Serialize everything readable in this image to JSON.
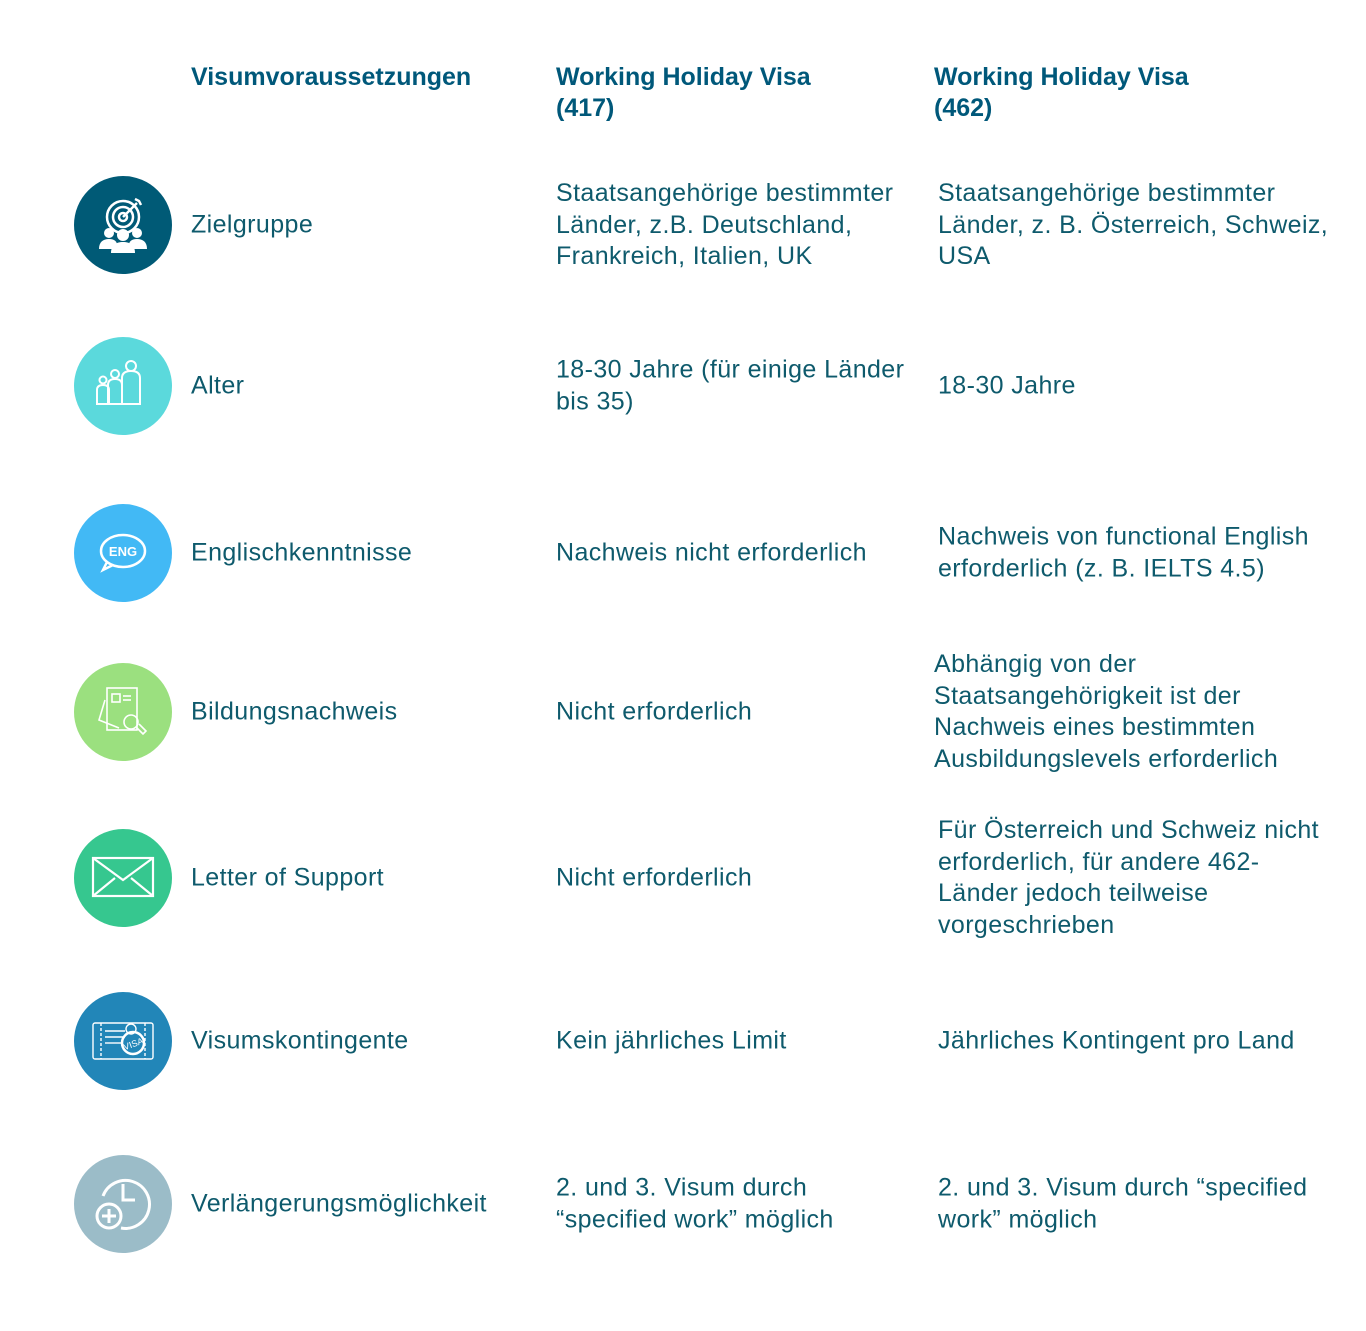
{
  "header": {
    "col1": "Visumvoraussetzungen",
    "col2": "Working Holiday Visa (417)",
    "col3": "Working Holiday Visa (462)"
  },
  "rows": [
    {
      "label": "Zielgruppe",
      "icon": "target-group-icon",
      "color": "#005a76",
      "visa417": "Staatsangehörige bestimmter Länder, z.B. Deutschland, Frankreich, Italien, UK",
      "visa462": "Staatsangehörige bestimmter Länder, z. B. Österreich, Schweiz, USA"
    },
    {
      "label": "Alter",
      "icon": "family-icon",
      "color": "#5bd9dc",
      "visa417": "18-30 Jahre (für einige Länder bis 35)",
      "visa462": "18-30 Jahre"
    },
    {
      "label": "Englischkenntnisse",
      "icon": "eng-speech-bubble-icon",
      "color": "#42b9f5",
      "visa417": "Nachweis nicht erforderlich",
      "visa462": "Nachweis von functional English erforderlich (z. B. IELTS 4.5)"
    },
    {
      "label": "Bildungsnachweis",
      "icon": "document-search-icon",
      "color": "#9be07f",
      "visa417": "Nicht erforderlich",
      "visa462": "Abhängig von der Staatsangehörigkeit ist der Nachweis eines bestimmten Ausbildungslevels erforderlich"
    },
    {
      "label": "Letter of Support",
      "icon": "envelope-icon",
      "color": "#36c78f",
      "visa417": "Nicht erforderlich",
      "visa462": "Für Österreich und Schweiz nicht erforderlich, für andere 462-Länder jedoch teilweise vorgeschrieben"
    },
    {
      "label": "Visumskontingente",
      "icon": "visa-stamp-icon",
      "color": "#2286b8",
      "visa417": "Kein jährliches Limit",
      "visa462": "Jährliches Kontingent pro Land"
    },
    {
      "label": "Verlängerungsmöglichkeit",
      "icon": "clock-plus-icon",
      "color": "#9bbcc8",
      "visa417": "2. und 3. Visum durch “specified work” möglich",
      "visa462": "2. und 3. Visum durch “specified work” möglich"
    }
  ]
}
